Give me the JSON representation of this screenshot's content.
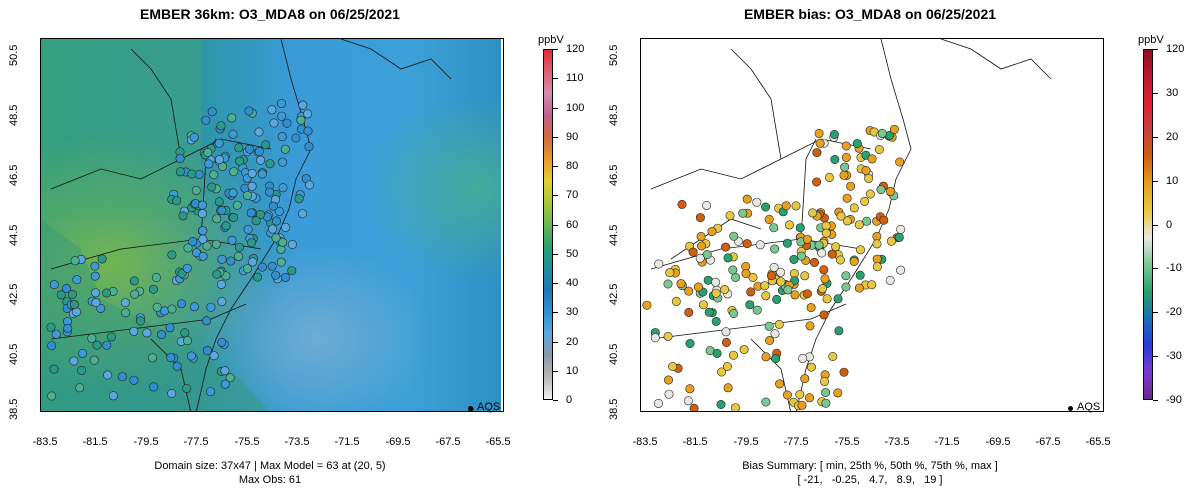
{
  "left": {
    "title": "EMBER 36km: O3_MDA8 on 06/25/2021",
    "footer_line1": "Domain size: 37x47 | Max Model = 63 at (20, 5)",
    "footer_line2": "Max Obs: 61",
    "legend_label": "AQS",
    "colorbar": {
      "unit": "ppbV",
      "labels": [
        "0",
        "10",
        "20",
        "30",
        "40",
        "50",
        "60",
        "70",
        "80",
        "90",
        "100",
        "110",
        "120"
      ],
      "stops": [
        "#f2f2f2",
        "#b8b8b8",
        "#8a9aa8",
        "#5ba8e0",
        "#2f8fd0",
        "#1f78b4",
        "#1f8fa0",
        "#2aa070",
        "#66b850",
        "#a8c838",
        "#e0d030",
        "#e89a2a",
        "#d06a40",
        "#c0608a",
        "#d88ab0",
        "#e06070",
        "#e02a3a"
      ]
    },
    "y_ticks": [
      "38.5",
      "40.5",
      "42.5",
      "44.5",
      "46.5",
      "48.5",
      "50.5"
    ],
    "x_ticks": [
      "-83.5",
      "-81.5",
      "-79.5",
      "-77.5",
      "-75.5",
      "-73.5",
      "-71.5",
      "-69.5",
      "-67.5",
      "-65.5"
    ]
  },
  "right": {
    "title": "EMBER bias: O3_MDA8 on 06/25/2021",
    "footer_line1": "Bias Summary: [ min, 25th %, 50th %, 75th %, max ]",
    "footer_line2": "[ -21,   -0.25,   4.7,   8.9,   19 ]",
    "legend_label": "AQS",
    "colorbar": {
      "unit": "ppbV",
      "labels": [
        "-90",
        "-30",
        "-20",
        "-10",
        "0",
        "10",
        "20",
        "30",
        "120"
      ],
      "stops": [
        "#6a2a8a",
        "#7a3ad0",
        "#2a3ad8",
        "#1a70b8",
        "#2aa070",
        "#7ac890",
        "#e8e8e0",
        "#e8c840",
        "#e8a020",
        "#d06010",
        "#c84040",
        "#e02030",
        "#c01830",
        "#8a1020"
      ]
    },
    "y_ticks": [
      "38.5",
      "40.5",
      "42.5",
      "44.5",
      "46.5",
      "48.5",
      "50.5"
    ],
    "x_ticks": [
      "-83.5",
      "-81.5",
      "-79.5",
      "-77.5",
      "-75.5",
      "-73.5",
      "-71.5",
      "-69.5",
      "-67.5",
      "-65.5"
    ]
  }
}
